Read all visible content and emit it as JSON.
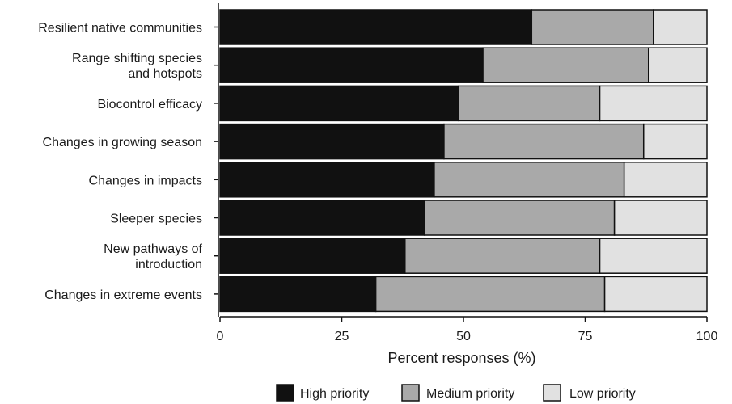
{
  "chart_data": {
    "type": "bar",
    "orientation": "horizontal",
    "stacked": true,
    "categories": [
      [
        "Resilient native communities"
      ],
      [
        "Range shifting species",
        "and hotspots"
      ],
      [
        "Biocontrol efficacy"
      ],
      [
        "Changes in growing season"
      ],
      [
        "Changes in impacts"
      ],
      [
        "Sleeper species"
      ],
      [
        "New pathways of",
        "introduction"
      ],
      [
        "Changes in extreme events"
      ]
    ],
    "series": [
      {
        "name": "High priority",
        "color": "#111111",
        "values": [
          64,
          54,
          49,
          46,
          44,
          42,
          38,
          32
        ]
      },
      {
        "name": "Medium priority",
        "color": "#a9a9a9",
        "values": [
          25,
          34,
          29,
          41,
          39,
          39,
          40,
          47
        ]
      },
      {
        "name": "Low priority",
        "color": "#e1e1e1",
        "values": [
          11,
          12,
          22,
          13,
          17,
          19,
          22,
          21
        ]
      }
    ],
    "xlabel": "Percent responses (%)",
    "xlim": [
      0,
      100
    ],
    "xticks": [
      "0",
      "25",
      "50",
      "75",
      "100"
    ],
    "xtick_values": [
      0,
      25,
      50,
      75,
      100
    ],
    "grid": false,
    "legend_position": "bottom"
  }
}
